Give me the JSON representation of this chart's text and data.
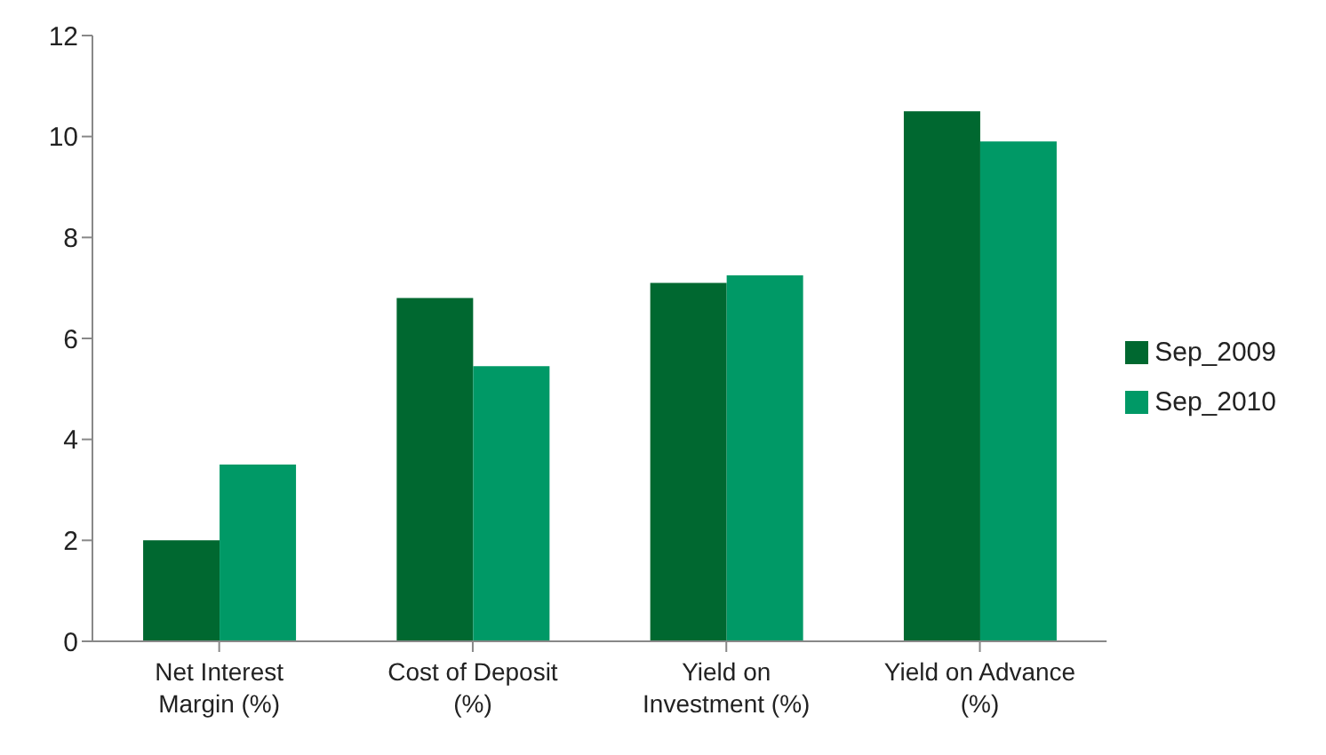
{
  "chart_data": {
    "type": "bar",
    "categories": [
      "Net Interest Margin (%)",
      "Cost of Deposit (%)",
      "Yield on Investment (%)",
      "Yield on Advance (%)"
    ],
    "series": [
      {
        "name": "Sep_2009",
        "color": "#006830",
        "values": [
          2.0,
          6.8,
          7.1,
          10.5
        ]
      },
      {
        "name": "Sep_2010",
        "color": "#009966",
        "values": [
          3.5,
          5.45,
          7.25,
          9.9
        ]
      }
    ],
    "ylim": [
      0,
      12
    ],
    "yticks": [
      0,
      2,
      4,
      6,
      8,
      10,
      12
    ],
    "grid": false,
    "legend": "right"
  }
}
